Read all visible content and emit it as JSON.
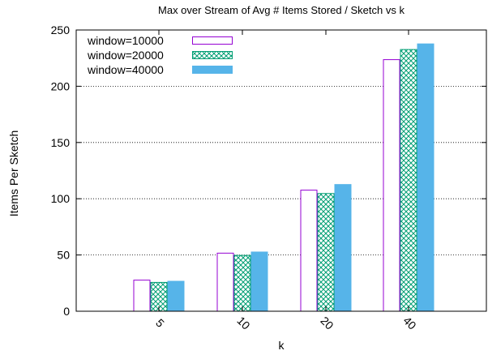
{
  "chart_data": {
    "type": "bar",
    "title": "Max over Stream of Avg # Items Stored / Sketch vs k",
    "xlabel": "k",
    "ylabel": "Items Per Sketch",
    "categories": [
      "5",
      "10",
      "20",
      "40"
    ],
    "ylim": [
      0,
      250
    ],
    "yticks": [
      0,
      50,
      100,
      150,
      200,
      250
    ],
    "grid": "horizontal dotted",
    "legend_position": "top-left",
    "series": [
      {
        "name": "window=10000",
        "values": [
          28,
          52,
          108,
          224
        ],
        "color": "#9400d3",
        "style": "outline"
      },
      {
        "name": "window=20000",
        "values": [
          26,
          50,
          105,
          233
        ],
        "color": "#009e73",
        "style": "crosshatch"
      },
      {
        "name": "window=40000",
        "values": [
          27,
          53,
          113,
          238
        ],
        "color": "#56b4e9",
        "style": "solid"
      }
    ]
  }
}
